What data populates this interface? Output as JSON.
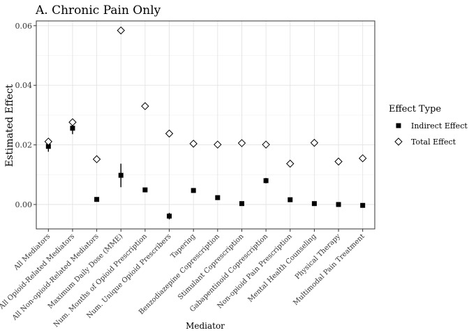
{
  "chart_data": {
    "type": "scatter",
    "title": "A. Chronic Pain Only",
    "xlabel": "Mediator",
    "ylabel": "Estimated Effect",
    "ylim": [
      -0.0082,
      0.0616
    ],
    "yticks": [
      0.0,
      0.02,
      0.04,
      0.06
    ],
    "ytick_labels": [
      "0.00",
      "0.02",
      "0.04",
      "0.06"
    ],
    "grid": true,
    "legend_title": "Effect Type",
    "legend_position": "right",
    "categories": [
      "All Mediators",
      "All Opioid-Related Mediators",
      "All Non-opioid-Related Mediators",
      "Maximum Daily Dose (MME)",
      "Num. Months of Opioid Prescription",
      "Num. Unique Opioid Prescribers",
      "Tapering",
      "Benzodiazepine Coprescription",
      "Stimulant Coprescription",
      "Gabapentinoid Coprescription",
      "Non-opioid Pain Prescription",
      "Mental Health Counseling",
      "Physical Therapy",
      "Multimodal Pain Treatment"
    ],
    "series": [
      {
        "name": "Indirect Effect",
        "marker": "square",
        "color": "#000000",
        "values": [
          0.0195,
          0.0256,
          0.0017,
          0.0098,
          0.0049,
          -0.0039,
          0.0047,
          0.0023,
          0.0003,
          0.008,
          0.0016,
          0.0003,
          0.0,
          -0.0003
        ],
        "ci_low": [
          0.0177,
          0.0236,
          0.001,
          0.0058,
          0.0042,
          -0.005,
          0.0041,
          0.0018,
          0.0,
          0.0071,
          0.0012,
          0.0,
          -0.0005,
          -0.0007
        ],
        "ci_high": [
          0.0213,
          0.0276,
          0.0024,
          0.0137,
          0.0056,
          -0.0028,
          0.0053,
          0.0028,
          0.0006,
          0.0089,
          0.002,
          0.0006,
          0.0005,
          0.0001
        ]
      },
      {
        "name": "Total Effect",
        "marker": "diamond-open",
        "color": "#000000",
        "values": [
          0.0211,
          0.0276,
          0.0152,
          0.0584,
          0.033,
          0.0238,
          0.0204,
          0.0201,
          0.0206,
          0.0201,
          0.0137,
          0.0207,
          0.0144,
          0.0155
        ]
      }
    ]
  }
}
